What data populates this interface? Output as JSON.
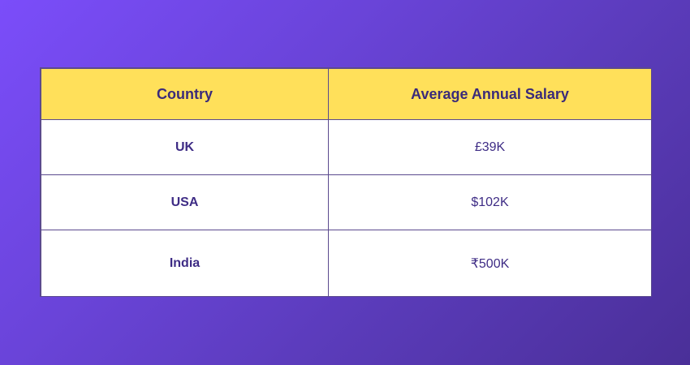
{
  "chart_data": {
    "type": "table",
    "columns": [
      "Country",
      "Average Annual Salary"
    ],
    "rows": [
      {
        "country": "UK",
        "salary": "£39K"
      },
      {
        "country": "USA",
        "salary": "$102K"
      },
      {
        "country": "India",
        "salary": "₹500K"
      }
    ]
  },
  "colors": {
    "header_bg": "#ffe05a",
    "header_text": "#3a2a7a",
    "body_text": "#3e2c85",
    "border": "#5b4a8e",
    "background_gradient_start": "#7b4dfa",
    "background_gradient_end": "#4a2f98"
  }
}
